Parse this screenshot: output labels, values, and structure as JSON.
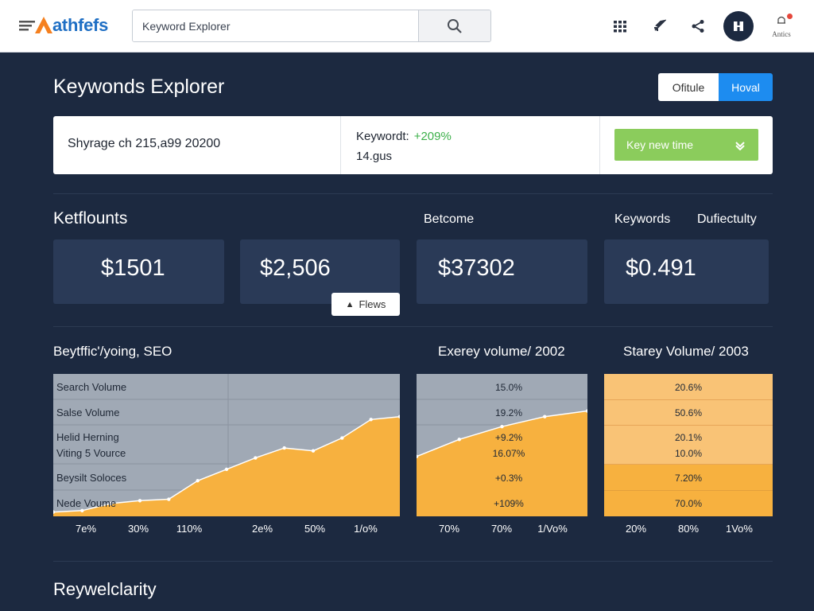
{
  "app": {
    "name": "athfefs"
  },
  "search": {
    "placeholder": "Keyword Explorer",
    "value": "Keyword Explorer"
  },
  "topbar": {
    "alerts_label": "Antics"
  },
  "header": {
    "title": "Keywonds Explorer",
    "toggle": [
      "Ofitule",
      "Hoval"
    ]
  },
  "summary": {
    "left": "Shyrage ch 215,a99 20200",
    "keyword_label": "Keywordt:",
    "keyword_change": "+209%",
    "keyword_sub": "14.gus",
    "button": "Key new time"
  },
  "metrics": {
    "section_title": "Ketflounts",
    "labels": [
      "Betcome",
      "Keywords",
      "Dufiectulty"
    ],
    "cards": [
      "$1501",
      "$2,506",
      "$37302",
      "$0.491"
    ],
    "flows_button": "Flews"
  },
  "charts": {
    "titles": [
      "Beytffic'/yoing, SEO",
      "Exerey volume/ 2002",
      "Starey Volume/ 2003"
    ],
    "row_labels": [
      "Search Volume",
      "Salse Volume",
      "Helid Herning",
      "Viting 5 Vource",
      "Beysilt Soloces",
      "Nede Voume"
    ],
    "panel2_values": [
      "15.0%",
      "19.2%",
      "+9.2%",
      "16.07%",
      "+0.3%",
      "+109%"
    ],
    "panel3_values": [
      "20.6%",
      "50.6%",
      "20.1%",
      "10.0%",
      "7.20%",
      "70.0%"
    ],
    "ticks": [
      "7e%",
      "30%",
      "110%",
      "2e%",
      "50%",
      "1/o%",
      "70%",
      "70%",
      "1/Vo%",
      "20%",
      "80%",
      "1Vo%"
    ],
    "colors": {
      "orange": "#f7b13f",
      "light_orange": "#f9c376",
      "slate": "#a0a9b5",
      "line": "#ffffff"
    }
  },
  "chart_data": {
    "type": "area",
    "title": "Beytffic'/yoing, SEO",
    "series": [
      {
        "values": [
          3,
          4,
          9,
          11,
          12,
          25,
          33,
          41,
          48,
          46,
          55,
          68,
          70
        ]
      },
      {
        "values": [
          42,
          54,
          63,
          70,
          74
        ]
      }
    ]
  },
  "footer": {
    "title": "Reywelclarity"
  }
}
